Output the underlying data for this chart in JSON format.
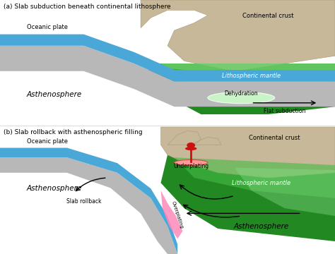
{
  "bg_color": "#ffffff",
  "gray_slab": "#b8b8b8",
  "gray_slab_dark": "#989898",
  "blue_ocean": "#4aa8d8",
  "cont_crust": "#c8b89a",
  "cont_crust_edge": "#a89878",
  "green_dark": "#228822",
  "green_mid": "#44bb44",
  "green_light": "#88dd88",
  "pink_color": "#ff88bb",
  "red_color": "#cc1111",
  "panel_a_title": "(a) Slab subduction beneath continental lithosphere",
  "panel_b_title": "(b) Slab rollback with asthenospheric filling",
  "oceanic_plate_text": "Oceanic plate",
  "continental_crust_text": "Continental crust",
  "litho_mantle_text": "Lithospheric mantle",
  "dehydration_text": "Dehydration",
  "flat_subduction_text": "Flat subduction",
  "asthenosphere_text": "Asthenosphere",
  "underplating_text": "Underplating",
  "slab_rollback_text": "Slab rollback",
  "overplating_text": "Overplating"
}
